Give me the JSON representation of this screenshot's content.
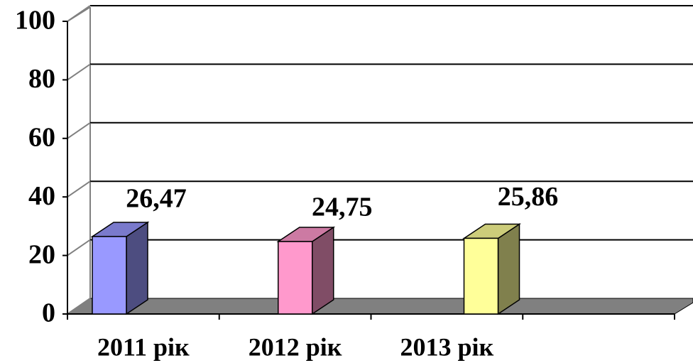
{
  "chart_data": {
    "type": "bar3d",
    "categories": [
      "2011  рік",
      "2012 рік",
      "2013 рік",
      null
    ],
    "values": [
      26.47,
      24.75,
      25.86,
      null
    ],
    "value_labels": [
      "26,47",
      "24,75",
      "25,86",
      null
    ],
    "colors": [
      "#9999ff",
      "#ff99cc",
      "#ffff99",
      null
    ],
    "ylim": [
      0,
      100
    ],
    "yticks": [
      0,
      20,
      40,
      60,
      80,
      100
    ],
    "grid": true
  }
}
